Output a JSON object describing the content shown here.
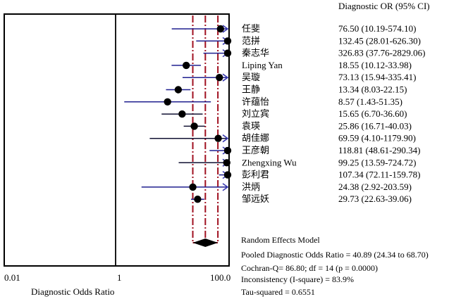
{
  "chart_data": {
    "type": "forest",
    "xlabel": "Diagnostic Odds Ratio",
    "x_scale": "log",
    "xlim": [
      0.01,
      100.0
    ],
    "x_tick_labels": [
      "0.01",
      "1",
      "100.0"
    ],
    "column_header": "Diagnostic OR (95% CI)",
    "reference_lines": [
      1,
      24.34,
      40.89,
      68.7
    ],
    "studies": [
      {
        "name": "任斐",
        "or": 76.5,
        "lo": 10.19,
        "hi": 574.1,
        "ci_text": "76.50 (10.19-574.10)"
      },
      {
        "name": "范拼",
        "or": 132.45,
        "lo": 28.01,
        "hi": 626.3,
        "ci_text": "132.45 (28.01-626.30)"
      },
      {
        "name": "秦志华",
        "or": 326.83,
        "lo": 37.76,
        "hi": 2829.06,
        "ci_text": "326.83 (37.76-2829.06)"
      },
      {
        "name": "Liping Yan",
        "or": 18.55,
        "lo": 10.12,
        "hi": 33.98,
        "ci_text": "18.55 (10.12-33.98)"
      },
      {
        "name": "吴璇",
        "or": 73.13,
        "lo": 15.94,
        "hi": 335.41,
        "ci_text": "73.13 (15.94-335.41)"
      },
      {
        "name": "王静",
        "or": 13.34,
        "lo": 8.03,
        "hi": 22.15,
        "ci_text": "13.34 (8.03-22.15)"
      },
      {
        "name": "许蕴怡",
        "or": 8.57,
        "lo": 1.43,
        "hi": 51.35,
        "ci_text": "8.57 (1.43-51.35)"
      },
      {
        "name": "刘立宾",
        "or": 15.65,
        "lo": 6.7,
        "hi": 36.6,
        "ci_text": "15.65 (6.70-36.60)"
      },
      {
        "name": "袁瑛",
        "or": 25.86,
        "lo": 16.71,
        "hi": 40.03,
        "ci_text": "25.86 (16.71-40.03)"
      },
      {
        "name": "胡佳娜",
        "or": 69.59,
        "lo": 4.1,
        "hi": 1179.9,
        "ci_text": "69.59 (4.10-1179.90)"
      },
      {
        "name": "王彦朝",
        "or": 118.81,
        "lo": 48.61,
        "hi": 290.34,
        "ci_text": "118.81 (48.61-290.34)"
      },
      {
        "name": "Zhengxing Wu",
        "or": 99.25,
        "lo": 13.59,
        "hi": 724.72,
        "ci_text": "99.25 (13.59-724.72)"
      },
      {
        "name": "彭利君",
        "or": 107.34,
        "lo": 72.11,
        "hi": 159.78,
        "ci_text": "107.34 (72.11-159.78)"
      },
      {
        "name": "洪炳",
        "or": 24.38,
        "lo": 2.92,
        "hi": 203.59,
        "ci_text": "24.38 (2.92-203.59)"
      },
      {
        "name": "邹远妖",
        "or": 29.73,
        "lo": 22.63,
        "hi": 39.06,
        "ci_text": "29.73 (22.63-39.06)"
      }
    ],
    "pooled": {
      "or": 40.89,
      "lo": 24.34,
      "hi": 68.7
    },
    "model_title": "Random Effects Model",
    "stats_lines": [
      "Pooled Diagnostic Odds Ratio = 40.89 (24.34 to 68.70)",
      "Cochran-Q= 86.80; df = 14 (p = 0.0000)",
      "Inconsistency (I-square) = 83.9%",
      "Tau-squared = 0.6551"
    ],
    "colors": {
      "ci_line": "#1f1f8f",
      "ci_line_dark": "#111133",
      "arrow": "#3a3ab0",
      "ref_line": "#a01020",
      "frame": "#000000"
    }
  }
}
